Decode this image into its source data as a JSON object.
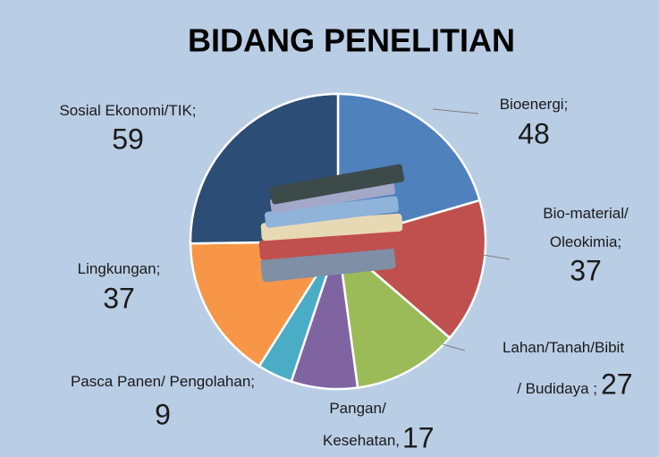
{
  "chart_data": {
    "type": "pie",
    "title": "BIDANG PENELITIAN",
    "categories": [
      "Bioenergi;",
      "Bio-material/\nOleokimia;",
      "Lahan/Tanah/Bibit\n/ Budidaya ;",
      "Pangan/\nKesehatan,",
      "Pasca Panen/  Pengolahan;",
      "Lingkungan;",
      "Sosial Ekonomi/TIK;"
    ],
    "values": [
      48,
      37,
      27,
      17,
      9,
      37,
      59
    ],
    "colors": [
      "#4f81bd",
      "#c0504d",
      "#9bbb59",
      "#8064a2",
      "#4bacc6",
      "#f79646",
      "#2c4d75"
    ]
  }
}
